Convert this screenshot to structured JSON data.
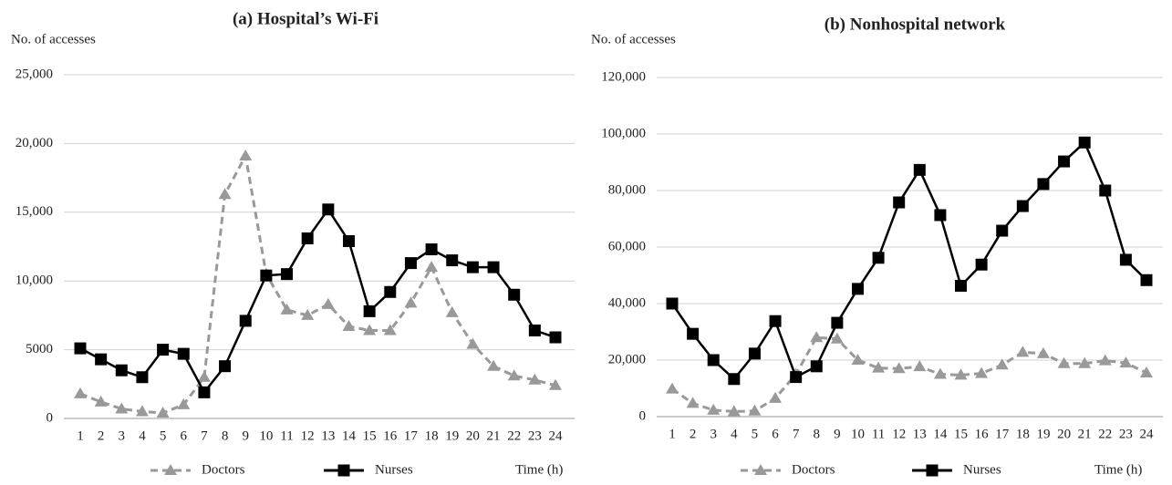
{
  "chart_data": [
    {
      "type": "line",
      "title": "(a) Hospital’s Wi-Fi",
      "y_label": "No. of accesses",
      "x_label": "Time (h)",
      "categories": [
        "1",
        "2",
        "3",
        "4",
        "5",
        "6",
        "7",
        "8",
        "9",
        "10",
        "11",
        "12",
        "13",
        "14",
        "15",
        "16",
        "17",
        "18",
        "19",
        "20",
        "21",
        "22",
        "23",
        "24"
      ],
      "ylim": [
        0,
        25000
      ],
      "yticks": [
        0,
        5000,
        {
          "value": 10000,
          "label": "10,000"
        },
        {
          "value": 15000,
          "label": "15,000"
        },
        {
          "value": 20000,
          "label": "20,000"
        },
        {
          "value": 25000,
          "label": "25,000"
        }
      ],
      "grid": true,
      "series": [
        {
          "name": "Doctors",
          "color": "#999999",
          "dashed": true,
          "marker": "triangle",
          "values": [
            1800,
            1200,
            700,
            500,
            400,
            1000,
            3000,
            16300,
            19100,
            10500,
            7900,
            7500,
            8300,
            6700,
            6400,
            6400,
            8400,
            11000,
            7700,
            5400,
            3800,
            3100,
            2800,
            2400
          ]
        },
        {
          "name": "Nurses",
          "color": "#000000",
          "dashed": false,
          "marker": "square",
          "values": [
            5100,
            4300,
            3500,
            3000,
            5000,
            4700,
            1900,
            3800,
            7100,
            10400,
            10500,
            13100,
            15200,
            12900,
            7800,
            9200,
            11300,
            12300,
            11500,
            11000,
            11000,
            9000,
            6400,
            5900
          ]
        }
      ]
    },
    {
      "type": "line",
      "title": "(b) Nonhospital network",
      "y_label": "No. of accesses",
      "x_label": "Time (h)",
      "categories": [
        "1",
        "2",
        "3",
        "4",
        "5",
        "6",
        "7",
        "8",
        "9",
        "10",
        "11",
        "12",
        "13",
        "14",
        "15",
        "16",
        "17",
        "18",
        "19",
        "20",
        "21",
        "22",
        "23",
        "24"
      ],
      "ylim": [
        0,
        120000
      ],
      "yticks": [
        0,
        {
          "value": 20000,
          "label": "20,000"
        },
        {
          "value": 40000,
          "label": "40,000"
        },
        {
          "value": 60000,
          "label": "60,000"
        },
        {
          "value": 80000,
          "label": "80,000"
        },
        {
          "value": 100000,
          "label": "100,000"
        },
        {
          "value": 120000,
          "label": "120,000"
        }
      ],
      "grid": true,
      "series": [
        {
          "name": "Doctors",
          "color": "#999999",
          "dashed": true,
          "marker": "triangle",
          "values": [
            9800,
            4700,
            2300,
            1800,
            2000,
            6500,
            15000,
            28000,
            27500,
            20000,
            17200,
            17000,
            17700,
            15000,
            14700,
            15300,
            18300,
            22800,
            22300,
            18800,
            18800,
            19800,
            19000,
            15500
          ]
        },
        {
          "name": "Nurses",
          "color": "#000000",
          "dashed": false,
          "marker": "square",
          "values": [
            40000,
            29300,
            20000,
            13300,
            22300,
            33800,
            14000,
            17800,
            33200,
            45200,
            56200,
            75800,
            87300,
            71300,
            46300,
            53800,
            65800,
            74500,
            82300,
            90300,
            97000,
            80000,
            55500,
            48300
          ]
        }
      ]
    }
  ]
}
